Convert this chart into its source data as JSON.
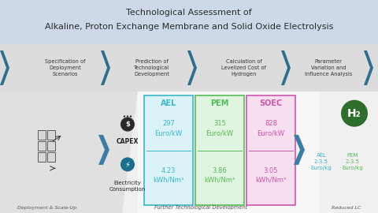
{
  "title_line1": "Technological Assessment of",
  "title_line2": "Alkaline, Proton Exchange Membrane and Solid Oxide Electrolysis",
  "title_bg": "#cdd9e8",
  "process_bg": "#dcdcdc",
  "process_steps": [
    "Specification of\nDeployment\nScenarios",
    "Prediction of\nTechnological\nDevelopment",
    "Calculation of\nLevelized Cost of\nHydrogen",
    "Parameter\nVariation and\nInfluence Analysis"
  ],
  "arrow_color": "#2e6e8e",
  "tech_cols": [
    "AEL",
    "PEM",
    "SOEC"
  ],
  "tech_colors": [
    "#3ab8c8",
    "#55bb55",
    "#cc55aa"
  ],
  "tech_bg": [
    "#daf2f8",
    "#dff5df",
    "#f8dff0"
  ],
  "capex_values": [
    "297\nEuro/kW",
    "315\nEuro/kW",
    "828\nEuro/kW"
  ],
  "elec_values": [
    "4.23\nkWh/Nm³",
    "3.86\nkWh/Nm³",
    "3.05\nkWh/Nm³"
  ],
  "result_labels_1": "AEL\n2-3.5\nEuro/kg",
  "result_labels_2": "PEM\n2-3.5\nEuro/kg",
  "result_color_1": "#3ab8c8",
  "result_color_2": "#55bb55",
  "bottom_label_left": "Deployment & Scale-Up",
  "bottom_label_mid": "Further Technological Development",
  "bottom_label_right": "Reduced LC",
  "h2_circle_color": "#2d6e2d",
  "capex_label": "CAPEX",
  "elec_label": "Electricity\nConsumption",
  "bottom_area_bg": "#f0f0f0",
  "left_band_bg": "#e0e0e0",
  "white_center_bg": "#f8f8f8"
}
